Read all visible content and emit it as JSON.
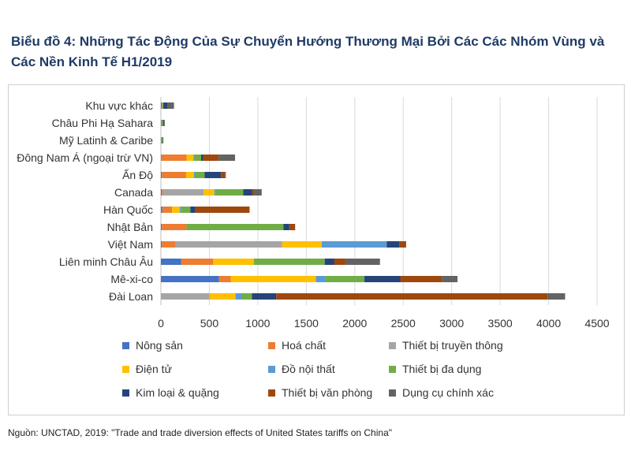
{
  "title": "Biểu đồ 4: Những Tác Động Của Sự Chuyển Hướng Thương Mại Bởi Các Các Nhóm Vùng và Các Nền Kinh Tế H1/2019",
  "source": "Nguồn: UNCTAD, 2019: \"Trade and trade diversion effects of United States tariffs on China\"",
  "chart_data": {
    "type": "bar",
    "orientation": "horizontal",
    "stacked": true,
    "grid": true,
    "legend_position": "bottom",
    "xlim": [
      0,
      4500
    ],
    "x_ticks": [
      0,
      500,
      1000,
      1500,
      2000,
      2500,
      3000,
      3500,
      4000,
      4500
    ],
    "categories": [
      "Khu vực khác",
      "Châu Phi Hạ Sahara",
      "Mỹ Latinh & Caribe",
      "Đông Nam Á (ngoại trừ VN)",
      "Ấn Độ",
      "Canada",
      "Hàn Quốc",
      "Nhật Bản",
      "Việt Nam",
      "Liên minh Châu Âu",
      "Mê-xi-co",
      "Đài Loan"
    ],
    "series": [
      {
        "name": "Nông sản",
        "color": "#4472c4",
        "values": [
          10,
          5,
          5,
          5,
          10,
          10,
          15,
          10,
          10,
          210,
          600,
          0
        ]
      },
      {
        "name": "Hoá chất",
        "color": "#ed7d31",
        "values": [
          5,
          5,
          0,
          260,
          250,
          10,
          100,
          255,
          140,
          330,
          120,
          0
        ]
      },
      {
        "name": "Thiết bị truyền thông",
        "color": "#a5a5a5",
        "values": [
          0,
          0,
          0,
          0,
          0,
          420,
          0,
          0,
          1100,
          0,
          0,
          500
        ]
      },
      {
        "name": "Điện tử",
        "color": "#ffc000",
        "values": [
          0,
          0,
          0,
          70,
          80,
          110,
          80,
          0,
          410,
          420,
          880,
          270
        ]
      },
      {
        "name": "Đồ nội thất",
        "color": "#5b9bd5",
        "values": [
          0,
          0,
          0,
          10,
          10,
          10,
          10,
          0,
          670,
          0,
          100,
          60
        ]
      },
      {
        "name": "Thiết bị đa dụng",
        "color": "#70ad47",
        "values": [
          10,
          10,
          15,
          70,
          100,
          290,
          100,
          1000,
          0,
          730,
          400,
          110
        ]
      },
      {
        "name": "Kim loại & quặng",
        "color": "#264478",
        "values": [
          40,
          10,
          5,
          20,
          170,
          90,
          50,
          60,
          130,
          100,
          370,
          250
        ]
      },
      {
        "name": "Thiết bị văn phòng",
        "color": "#9e480e",
        "values": [
          0,
          0,
          0,
          160,
          40,
          20,
          560,
          60,
          70,
          110,
          430,
          2800
        ]
      },
      {
        "name": "Dụng cụ chính xác",
        "color": "#636363",
        "values": [
          70,
          10,
          0,
          170,
          10,
          80,
          0,
          0,
          0,
          360,
          160,
          180
        ]
      }
    ]
  }
}
